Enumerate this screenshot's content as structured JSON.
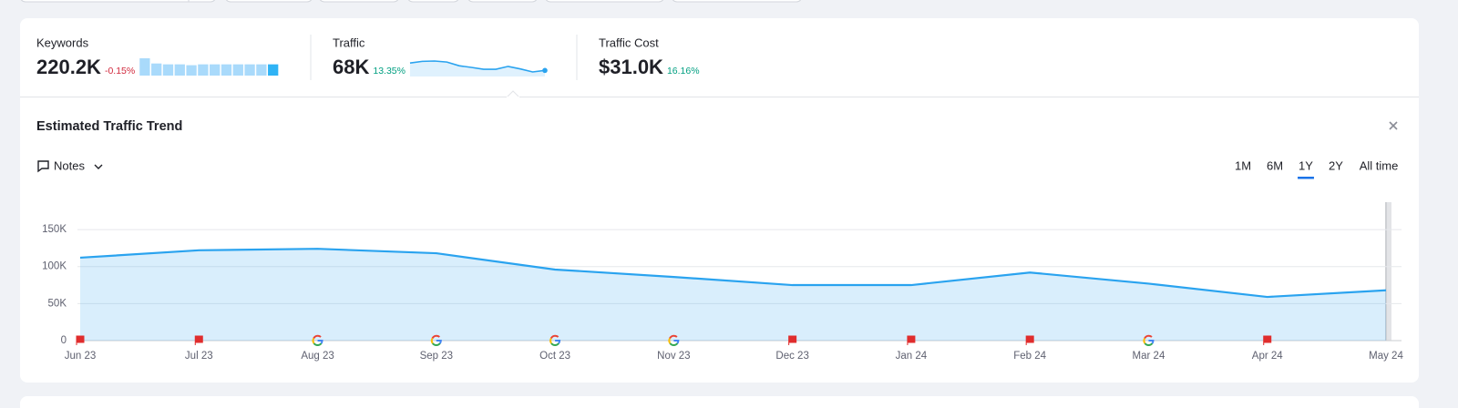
{
  "summary": [
    {
      "label": "Keywords",
      "value": "220.2K",
      "change": "-0.15%",
      "trend": [
        232,
        226,
        225,
        225,
        224,
        225,
        225,
        225,
        225,
        225,
        225,
        225
      ]
    },
    {
      "label": "Traffic",
      "value": "68K",
      "change": "13.35%"
    },
    {
      "label": "Traffic Cost",
      "value": "$31.0K",
      "change": "16.16%"
    }
  ],
  "panel": {
    "title": "Estimated Traffic Trend",
    "notes": "Notes",
    "ranges": [
      "1M",
      "6M",
      "1Y",
      "2Y",
      "All time"
    ],
    "selected_range": 2
  },
  "chart_data": {
    "type": "line",
    "x": [
      "Jun 23",
      "Jul 23",
      "Aug 23",
      "Sep 23",
      "Oct 23",
      "Nov 23",
      "Dec 23",
      "Jan 24",
      "Feb 24",
      "Mar 24",
      "Apr 24",
      "May 24"
    ],
    "series": [
      {
        "color": "#2aa3ef",
        "values": [
          112000,
          122000,
          124000,
          118000,
          96000,
          86000,
          75000,
          75000,
          92000,
          77000,
          59000,
          68000
        ]
      }
    ],
    "ylim": [
      0,
      187000
    ],
    "yticks": [
      0,
      {
        "value": 50000,
        "label": "50K"
      },
      {
        "value": 100000,
        "label": "100K"
      },
      {
        "value": 150000,
        "label": "150K"
      }
    ],
    "grid": true,
    "area": true
  }
}
